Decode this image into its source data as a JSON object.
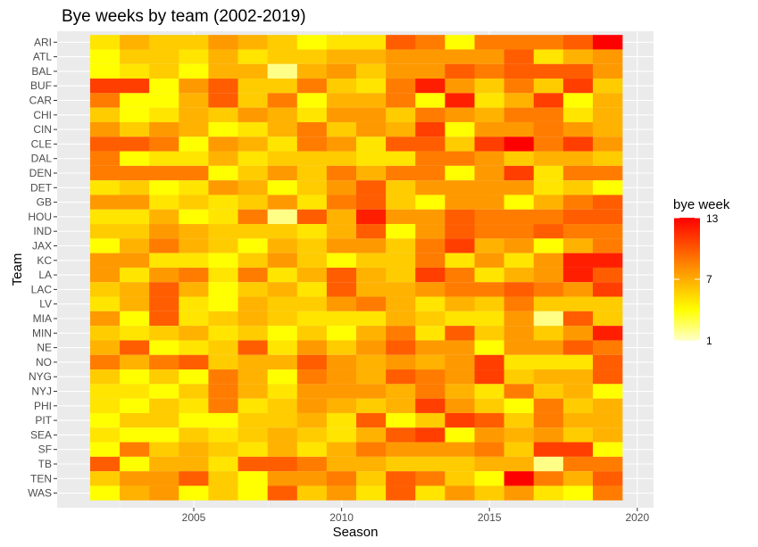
{
  "chart_data": {
    "type": "heatmap",
    "title": "Bye weeks by team (2002-2019)",
    "xlabel": "Season",
    "ylabel": "Team",
    "x_ticks": [
      2005,
      2010,
      2015,
      2020
    ],
    "xlim": [
      2001.2,
      2020.5
    ],
    "seasons": [
      2002,
      2003,
      2004,
      2005,
      2006,
      2007,
      2008,
      2009,
      2010,
      2011,
      2012,
      2013,
      2014,
      2015,
      2016,
      2017,
      2018,
      2019
    ],
    "teams": [
      "ARI",
      "ATL",
      "BAL",
      "BUF",
      "CAR",
      "CHI",
      "CIN",
      "CLE",
      "DAL",
      "DEN",
      "DET",
      "GB",
      "HOU",
      "IND",
      "JAX",
      "KC",
      "LA",
      "LAC",
      "LV",
      "MIA",
      "MIN",
      "NE",
      "NO",
      "NYG",
      "NYJ",
      "PHI",
      "PIT",
      "SEA",
      "SF",
      "TB",
      "TEN",
      "WAS"
    ],
    "values": [
      [
        5,
        7,
        6,
        6,
        8,
        7,
        6,
        4,
        5,
        5,
        10,
        9,
        4,
        9,
        9,
        9,
        10,
        13
      ],
      [
        4,
        6,
        6,
        5,
        7,
        5,
        6,
        6,
        7,
        7,
        8,
        8,
        8,
        8,
        10,
        5,
        7,
        8
      ],
      [
        4,
        5,
        6,
        4,
        7,
        7,
        2,
        7,
        8,
        6,
        8,
        8,
        10,
        9,
        10,
        10,
        10,
        8
      ],
      [
        11,
        11,
        4,
        8,
        10,
        6,
        6,
        9,
        6,
        5,
        9,
        12,
        8,
        6,
        9,
        6,
        11,
        6
      ],
      [
        9,
        4,
        4,
        7,
        10,
        6,
        9,
        4,
        7,
        7,
        9,
        4,
        12,
        5,
        7,
        11,
        4,
        7
      ],
      [
        6,
        4,
        5,
        7,
        6,
        8,
        7,
        5,
        8,
        8,
        6,
        9,
        8,
        7,
        9,
        9,
        5,
        7
      ],
      [
        8,
        6,
        8,
        7,
        4,
        5,
        7,
        9,
        6,
        8,
        7,
        11,
        4,
        8,
        8,
        9,
        8,
        7
      ],
      [
        10,
        10,
        9,
        4,
        8,
        7,
        5,
        9,
        8,
        5,
        10,
        10,
        6,
        11,
        13,
        9,
        11,
        8
      ],
      [
        9,
        4,
        5,
        5,
        7,
        5,
        6,
        6,
        6,
        5,
        5,
        9,
        9,
        8,
        6,
        7,
        7,
        6
      ],
      [
        9,
        9,
        9,
        9,
        4,
        6,
        8,
        6,
        9,
        7,
        9,
        9,
        4,
        8,
        11,
        5,
        9,
        9
      ],
      [
        5,
        6,
        4,
        5,
        8,
        7,
        4,
        6,
        8,
        10,
        6,
        8,
        8,
        8,
        8,
        5,
        6,
        4
      ],
      [
        8,
        8,
        5,
        6,
        5,
        6,
        8,
        5,
        9,
        10,
        6,
        4,
        8,
        8,
        4,
        7,
        9,
        10
      ],
      [
        5,
        5,
        7,
        4,
        5,
        9,
        2,
        10,
        7,
        12,
        8,
        8,
        10,
        9,
        9,
        9,
        10,
        10
      ],
      [
        6,
        6,
        8,
        7,
        6,
        6,
        6,
        5,
        7,
        10,
        4,
        8,
        10,
        9,
        9,
        10,
        9,
        9
      ],
      [
        4,
        7,
        9,
        7,
        6,
        4,
        7,
        6,
        8,
        8,
        6,
        9,
        11,
        7,
        8,
        4,
        7,
        9
      ],
      [
        8,
        8,
        5,
        5,
        4,
        6,
        8,
        6,
        4,
        6,
        6,
        9,
        5,
        8,
        5,
        8,
        12,
        12
      ],
      [
        8,
        5,
        8,
        9,
        5,
        9,
        5,
        7,
        10,
        7,
        6,
        11,
        9,
        5,
        7,
        8,
        12,
        10
      ],
      [
        6,
        7,
        10,
        7,
        4,
        6,
        7,
        5,
        10,
        7,
        7,
        8,
        9,
        9,
        10,
        9,
        8,
        11
      ],
      [
        5,
        7,
        10,
        5,
        4,
        7,
        6,
        6,
        8,
        9,
        7,
        5,
        7,
        6,
        9,
        6,
        6,
        6
      ],
      [
        8,
        4,
        10,
        5,
        6,
        7,
        6,
        5,
        5,
        5,
        7,
        6,
        5,
        5,
        8,
        2,
        10,
        6
      ],
      [
        6,
        5,
        6,
        7,
        5,
        6,
        4,
        6,
        4,
        7,
        9,
        5,
        10,
        6,
        8,
        6,
        8,
        12
      ],
      [
        7,
        10,
        4,
        5,
        6,
        10,
        5,
        8,
        6,
        8,
        10,
        8,
        8,
        4,
        8,
        8,
        10,
        9
      ],
      [
        9,
        7,
        9,
        10,
        6,
        7,
        7,
        10,
        8,
        7,
        8,
        7,
        8,
        11,
        5,
        5,
        5,
        10
      ],
      [
        6,
        4,
        6,
        4,
        9,
        7,
        4,
        9,
        8,
        7,
        10,
        9,
        8,
        11,
        6,
        7,
        7,
        10
      ],
      [
        5,
        5,
        4,
        6,
        9,
        7,
        5,
        8,
        8,
        8,
        7,
        9,
        7,
        5,
        9,
        6,
        7,
        4
      ],
      [
        5,
        4,
        6,
        5,
        9,
        5,
        6,
        8,
        7,
        6,
        7,
        11,
        8,
        6,
        4,
        9,
        6,
        7
      ],
      [
        4,
        6,
        6,
        4,
        4,
        6,
        6,
        7,
        5,
        10,
        4,
        6,
        11,
        10,
        6,
        9,
        7,
        7
      ],
      [
        5,
        4,
        4,
        6,
        5,
        6,
        7,
        6,
        5,
        7,
        10,
        11,
        4,
        8,
        7,
        8,
        6,
        7
      ],
      [
        4,
        9,
        6,
        7,
        6,
        5,
        7,
        5,
        7,
        9,
        8,
        8,
        8,
        9,
        6,
        11,
        11,
        4
      ],
      [
        10,
        4,
        7,
        7,
        5,
        10,
        10,
        9,
        7,
        7,
        6,
        6,
        6,
        7,
        7,
        2,
        9,
        9
      ],
      [
        6,
        8,
        8,
        10,
        6,
        4,
        8,
        8,
        9,
        6,
        10,
        9,
        6,
        4,
        13,
        9,
        7,
        10
      ],
      [
        4,
        7,
        8,
        4,
        6,
        4,
        10,
        6,
        8,
        5,
        10,
        5,
        8,
        6,
        8,
        5,
        4,
        9
      ]
    ],
    "legend": {
      "title": "bye week",
      "min": 1,
      "max": 13,
      "labels": [
        "13",
        "7",
        "1"
      ],
      "colors": [
        "#ffffcc",
        "#ffff00",
        "#ff8c00",
        "#ff0000"
      ]
    },
    "grid": true
  }
}
